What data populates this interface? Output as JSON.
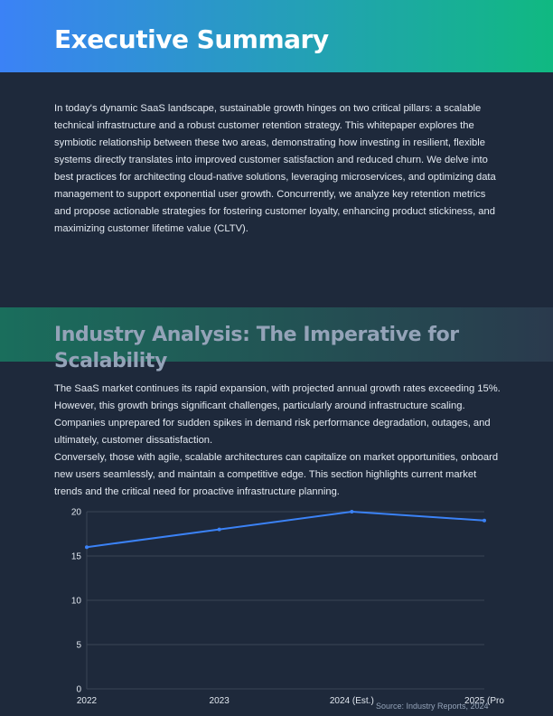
{
  "header": {
    "title": "Executive Summary"
  },
  "summary": {
    "text": "In today's dynamic SaaS landscape, sustainable growth hinges on two critical pillars: a scalable technical infrastructure and a robust customer retention strategy. This whitepaper explores the symbiotic relationship between these two areas, demonstrating how investing in resilient, flexible systems directly translates into improved customer satisfaction and reduced churn. We delve into best practices for architecting cloud-native solutions, leveraging microservices, and optimizing data management to support exponential user growth. Concurrently, we analyze key retention metrics and propose actionable strategies for fostering customer loyalty, enhancing product stickiness, and maximizing customer lifetime value (CLTV)."
  },
  "section": {
    "title": "Industry Analysis: The Imperative for Scalability",
    "p1": "The SaaS market continues its rapid expansion, with projected annual growth rates exceeding 15%. However, this growth brings significant challenges, particularly around infrastructure scaling. Companies unprepared for sudden spikes in demand risk performance degradation, outages, and ultimately, customer dissatisfaction.",
    "p2": "Conversely, those with agile, scalable architectures can capitalize on market opportunities, onboard new users seamlessly, and maintain a competitive edge. This section highlights current market trends and the critical need for proactive infrastructure planning."
  },
  "chart_data": {
    "type": "line",
    "categories": [
      "2022",
      "2023",
      "2024 (Est.)",
      "2025 (Pro"
    ],
    "values": [
      16,
      18,
      20,
      19
    ],
    "ylim": [
      0,
      20
    ],
    "yticks": [
      0,
      5,
      10,
      15,
      20
    ],
    "grid": true,
    "color": "#3b82f6",
    "source": "Source: Industry Reports, 2024"
  }
}
